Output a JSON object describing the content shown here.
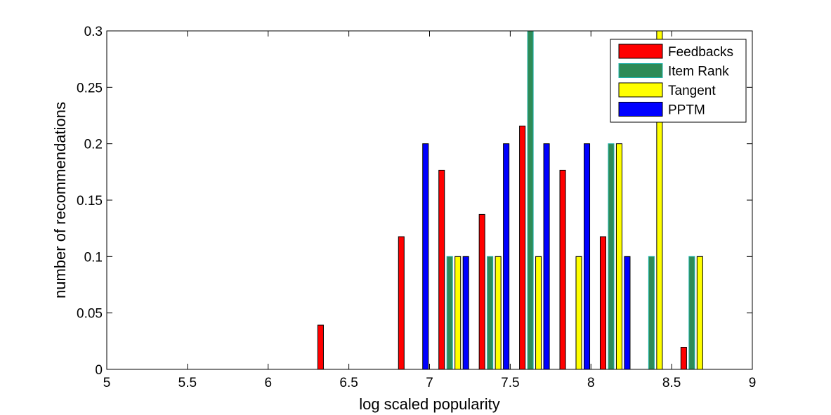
{
  "chart_data": {
    "type": "bar",
    "xlabel": "log scaled popularity",
    "ylabel": "number of recommendations",
    "xlim": [
      5,
      9
    ],
    "ylim": [
      0,
      0.3
    ],
    "xticks": [
      "5",
      "5.5",
      "6",
      "6.5",
      "7",
      "7.5",
      "8",
      "8.5",
      "9"
    ],
    "yticks": [
      "0",
      "0.05",
      "0.1",
      "0.15",
      "0.2",
      "0.25",
      "0.3"
    ],
    "grid": false,
    "legend_position": "top-right",
    "categories": [
      5.15,
      5.4,
      5.65,
      5.9,
      6.15,
      6.4,
      6.65,
      6.9,
      7.15,
      7.4,
      7.65,
      7.9,
      8.15,
      8.4,
      8.65,
      8.9
    ],
    "series": [
      {
        "name": "Feedbacks",
        "color": "#ff0000",
        "values": [
          0,
          0,
          0,
          0,
          0,
          0.0392,
          0,
          0.1176,
          0.1765,
          0.1373,
          0.2157,
          0.1765,
          0.1176,
          0,
          0.0196,
          0
        ]
      },
      {
        "name": "Item Rank",
        "color": "#2e8b57",
        "values": [
          0,
          0,
          0,
          0,
          0,
          0,
          0,
          0,
          0.1,
          0.1,
          0.3,
          0,
          0.2,
          0.1,
          0.1,
          0
        ]
      },
      {
        "name": "Tangent",
        "color": "#ffff00",
        "values": [
          0,
          0,
          0,
          0,
          0,
          0,
          0,
          0,
          0.1,
          0.1,
          0.1,
          0.1,
          0.2,
          0.3,
          0.1,
          0
        ]
      },
      {
        "name": "PPTM",
        "color": "#0000ff",
        "values": [
          0,
          0,
          0,
          0,
          0,
          0,
          0,
          0.2,
          0.1,
          0.2,
          0.2,
          0.2,
          0.1,
          0,
          0,
          0
        ]
      }
    ]
  }
}
